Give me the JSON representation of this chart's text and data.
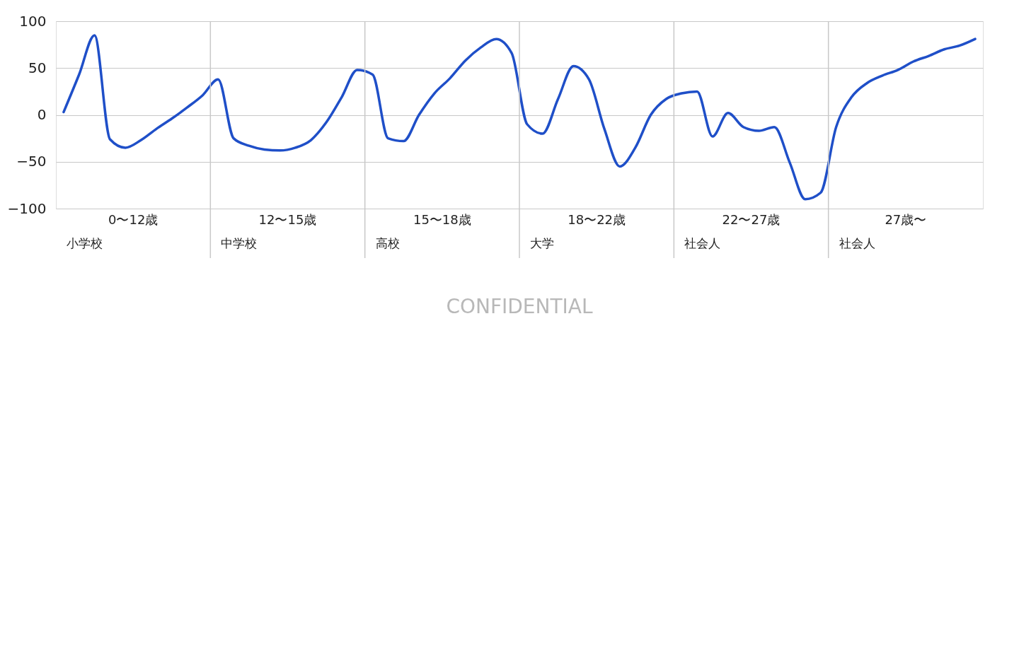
{
  "chart_data": {
    "type": "line",
    "categories": [
      null,
      null,
      null,
      null,
      null,
      null,
      null,
      null,
      null,
      null,
      null,
      null,
      null,
      null,
      null,
      null,
      null,
      null,
      null,
      null,
      null,
      null,
      null,
      null,
      null,
      null,
      null,
      null,
      null,
      null,
      null,
      null,
      null,
      null,
      null,
      null,
      null,
      null,
      null,
      null,
      null,
      null,
      null,
      null,
      null,
      null,
      null,
      null,
      null,
      null,
      null,
      null,
      null,
      null,
      null,
      null,
      null,
      null,
      null,
      null
    ],
    "series": [
      {
        "color": "#1f4fc8",
        "values": [
          3,
          43,
          85,
          -26,
          -35,
          -27,
          -15,
          -4,
          8,
          21,
          38,
          -25,
          -33,
          -37,
          -38,
          -35,
          -27,
          -8,
          19,
          48,
          43,
          -25,
          -28,
          0,
          23,
          39,
          58,
          72,
          81,
          66,
          -10,
          -20,
          17,
          52,
          38,
          -15,
          -55,
          -35,
          0,
          17,
          23,
          25,
          -23,
          2,
          -13,
          -17,
          -13,
          -51,
          -90,
          -83,
          -13,
          19,
          34,
          42,
          48,
          57,
          63,
          70,
          74,
          81
        ]
      }
    ],
    "ylim": [
      -100,
      100
    ],
    "yticks": [
      -100,
      -50,
      0,
      50,
      100
    ],
    "grid": true,
    "marker": "none",
    "line_style": "solid",
    "tick_labels": "y",
    "annotations": [
      "0〜12歳",
      "小学校",
      "12〜15歳",
      "中学校",
      "15〜18歳",
      "高校",
      "18〜22歳",
      "大学",
      "22〜27歳",
      "社会人",
      "27歳〜",
      "社会人",
      "CONFIDENTIAL"
    ]
  }
}
